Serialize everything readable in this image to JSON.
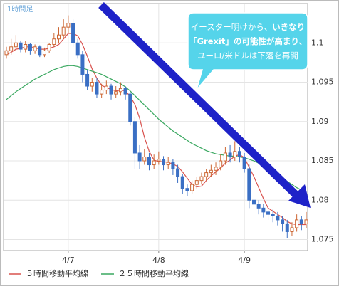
{
  "chart_data": {
    "type": "candlestick",
    "timeframe_label": "1時間足",
    "x": [
      null,
      null,
      null,
      null,
      null,
      null,
      null,
      null,
      null,
      null,
      null,
      null,
      null,
      "4/7",
      null,
      null,
      null,
      null,
      null,
      null,
      null,
      null,
      null,
      null,
      null,
      null,
      null,
      null,
      null,
      null,
      null,
      null,
      "4/8",
      null,
      null,
      null,
      null,
      null,
      null,
      null,
      null,
      null,
      null,
      null,
      null,
      null,
      null,
      null,
      null,
      null,
      "4/9",
      null,
      null,
      null,
      null,
      null,
      null,
      null,
      null,
      null,
      null,
      null,
      null,
      null
    ],
    "open": [
      1.0985,
      1.099,
      1.0995,
      1.1,
      1.0992,
      1.0998,
      1.099,
      1.0995,
      1.0985,
      1.099,
      1.0998,
      1.1005,
      1.101,
      1.102,
      1.1025,
      1.1,
      1.0985,
      1.096,
      1.0945,
      1.095,
      1.0935,
      1.094,
      1.0945,
      1.0935,
      1.0938,
      1.0942,
      1.0935,
      1.09,
      1.086,
      1.085,
      1.0855,
      1.0845,
      1.085,
      1.0852,
      1.0845,
      1.0848,
      1.084,
      1.083,
      1.0815,
      1.0812,
      1.082,
      1.0825,
      1.083,
      1.0835,
      1.0838,
      1.0842,
      1.085,
      1.086,
      1.0855,
      1.0862,
      1.0855,
      1.084,
      1.08,
      1.0795,
      1.079,
      1.0785,
      1.0782,
      1.078,
      1.0775,
      1.077,
      1.076,
      1.0765,
      1.0775,
      1.077
    ],
    "high": [
      1.0995,
      1.1005,
      1.101,
      1.1003,
      1.1002,
      1.1,
      1.0998,
      1.0997,
      1.0994,
      1.1,
      1.1012,
      1.102,
      1.103,
      1.1035,
      1.103,
      1.1005,
      1.099,
      1.0965,
      1.0955,
      1.0955,
      1.0948,
      1.0952,
      1.0948,
      1.0945,
      1.095,
      1.0945,
      1.0938,
      1.0905,
      1.087,
      1.0865,
      1.086,
      1.0858,
      1.0862,
      1.0856,
      1.0855,
      1.0852,
      1.0845,
      1.0833,
      1.082,
      1.0825,
      1.083,
      1.0835,
      1.084,
      1.0845,
      1.0848,
      1.0858,
      1.0868,
      1.087,
      1.0875,
      1.0868,
      1.086,
      1.0845,
      1.081,
      1.08,
      1.0795,
      1.079,
      1.0788,
      1.0785,
      1.078,
      1.0775,
      1.0772,
      1.0782,
      1.078,
      1.0785
    ],
    "low": [
      1.098,
      1.0985,
      1.099,
      1.0988,
      1.0988,
      1.0985,
      1.0986,
      1.0982,
      1.0982,
      1.0987,
      1.0995,
      1.1,
      1.1005,
      1.1012,
      1.0995,
      1.098,
      1.095,
      1.094,
      1.0938,
      1.093,
      1.093,
      1.0935,
      1.0928,
      1.093,
      1.0933,
      1.0928,
      1.0895,
      1.084,
      1.084,
      1.0845,
      1.0838,
      1.084,
      1.0845,
      1.0838,
      1.084,
      1.0832,
      1.0822,
      1.0808,
      1.0805,
      1.0808,
      1.0815,
      1.082,
      1.0825,
      1.083,
      1.0832,
      1.0838,
      1.0845,
      1.0848,
      1.085,
      1.0848,
      1.0835,
      1.079,
      1.0788,
      1.0782,
      1.0778,
      1.0775,
      1.0772,
      1.0768,
      1.076,
      1.0752,
      1.0755,
      1.076,
      1.0762,
      1.0765
    ],
    "close": [
      1.099,
      1.0995,
      1.1,
      1.0992,
      1.0998,
      1.099,
      1.0995,
      1.0985,
      1.099,
      1.0998,
      1.1005,
      1.101,
      1.102,
      1.1025,
      1.1,
      1.0985,
      1.096,
      1.0945,
      1.095,
      1.0935,
      1.094,
      1.0945,
      1.0935,
      1.0938,
      1.0942,
      1.0935,
      1.09,
      1.086,
      1.085,
      1.0855,
      1.0845,
      1.085,
      1.0852,
      1.0845,
      1.0848,
      1.084,
      1.083,
      1.0815,
      1.0812,
      1.082,
      1.0825,
      1.083,
      1.0835,
      1.0838,
      1.0842,
      1.085,
      1.086,
      1.0855,
      1.0862,
      1.0855,
      1.084,
      1.08,
      1.0795,
      1.079,
      1.0785,
      1.0782,
      1.078,
      1.0775,
      1.077,
      1.076,
      1.0765,
      1.0775,
      1.077,
      1.0775
    ],
    "up_color": "#cc6633",
    "down_color": "#3a6fc4",
    "series": [
      {
        "name": "５時間移動平均線",
        "color": "#d9534f",
        "values": [
          1.0985,
          1.0988,
          1.0992,
          1.0993,
          1.0995,
          1.0995,
          1.0994,
          1.0992,
          1.0992,
          1.0993,
          1.0995,
          1.0998,
          1.1005,
          1.1012,
          1.1012,
          1.1009,
          1.0998,
          1.0983,
          1.0967,
          1.0955,
          1.0946,
          1.0943,
          1.0941,
          1.0939,
          1.094,
          1.0939,
          1.0932,
          1.0922,
          1.0904,
          1.088,
          1.0862,
          1.0851,
          1.0849,
          1.0849,
          1.0848,
          1.0846,
          1.0843,
          1.0836,
          1.0828,
          1.082,
          1.0817,
          1.0818,
          1.0825,
          1.0831,
          1.0836,
          1.0841,
          1.0847,
          1.0851,
          1.0856,
          1.0858,
          1.0854,
          1.0842,
          1.083,
          1.0816,
          1.0802,
          1.079,
          1.0786,
          1.0782,
          1.0778,
          1.0773,
          1.077,
          1.0769,
          1.0769,
          1.0769
        ]
      },
      {
        "name": "２５時間移動平均線",
        "color": "#3aa860",
        "values": [
          1.0928,
          1.0933,
          1.0938,
          1.0942,
          1.0946,
          1.095,
          1.0954,
          1.0957,
          1.096,
          1.0963,
          1.0966,
          1.0968,
          1.097,
          1.0971,
          1.0971,
          1.097,
          1.0968,
          1.0966,
          1.0964,
          1.0962,
          1.096,
          1.0957,
          1.0954,
          1.0951,
          1.0948,
          1.0944,
          1.0939,
          1.0933,
          1.0927,
          1.0921,
          1.0915,
          1.0909,
          1.0903,
          1.0898,
          1.0893,
          1.0888,
          1.0884,
          1.088,
          1.0876,
          1.0872,
          1.0869,
          1.0866,
          1.0863,
          1.0861,
          1.0859,
          1.0858,
          1.0857,
          1.0856,
          1.0856,
          1.0855,
          1.0854,
          1.0852,
          1.085,
          1.0847,
          1.0844,
          1.084,
          1.0836,
          1.0832,
          1.0828,
          1.0824,
          1.082,
          1.0816,
          1.0813,
          1.081
        ]
      }
    ],
    "ylim": [
      1.0736,
      1.105
    ],
    "yticks": [
      1.075,
      1.08,
      1.085,
      1.09,
      1.095,
      1.1
    ],
    "grid": true,
    "annotation": [
      [
        {
          "text": "イースター明けから、",
          "bold": false
        },
        {
          "text": "いきなり",
          "bold": true
        }
      ],
      [
        {
          "text": "「Grexit」の可能性が高まり、",
          "bold": true
        }
      ],
      [
        {
          "text": "ユーロ/米ドルは下落を再開",
          "bold": false
        }
      ]
    ]
  }
}
